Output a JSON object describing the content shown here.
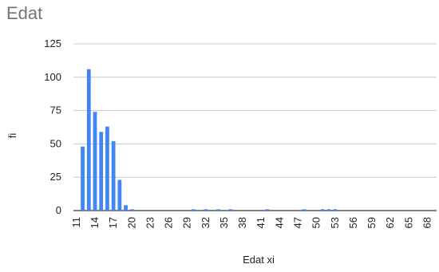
{
  "chart_data": {
    "type": "bar",
    "title": "Edat",
    "xlabel": "Edat xi",
    "ylabel": "fi",
    "ylim": [
      0,
      125
    ],
    "yticks": [
      0,
      25,
      50,
      75,
      100,
      125
    ],
    "grid": true,
    "legend": "none",
    "bar_color": "#4285f4",
    "x_tick_labels": [
      "11",
      "14",
      "17",
      "20",
      "23",
      "26",
      "29",
      "32",
      "35",
      "38",
      "41",
      "44",
      "47",
      "50",
      "53",
      "56",
      "59",
      "62",
      "65",
      "68"
    ],
    "categories": [
      11,
      12,
      13,
      14,
      15,
      16,
      17,
      18,
      19,
      20,
      21,
      22,
      23,
      24,
      25,
      26,
      27,
      28,
      29,
      30,
      31,
      32,
      33,
      34,
      35,
      36,
      37,
      38,
      39,
      40,
      41,
      42,
      43,
      44,
      45,
      46,
      47,
      48,
      49,
      50,
      51,
      52,
      53,
      54,
      55,
      56,
      57,
      58,
      59,
      60,
      61,
      62,
      63,
      64,
      65,
      66,
      67,
      68,
      69
    ],
    "values": [
      0,
      48,
      106,
      74,
      59,
      63,
      52,
      23,
      4,
      1,
      0,
      0,
      0,
      0,
      0,
      0,
      0,
      0,
      0,
      1,
      0,
      1,
      0,
      1,
      0,
      1,
      0,
      0,
      0,
      0,
      0,
      1,
      0,
      0,
      0,
      0,
      0,
      1,
      0,
      0,
      1,
      1,
      1,
      0,
      0,
      0,
      0,
      0,
      0,
      0,
      0,
      0,
      0,
      0,
      0,
      0,
      0,
      0,
      0
    ]
  }
}
